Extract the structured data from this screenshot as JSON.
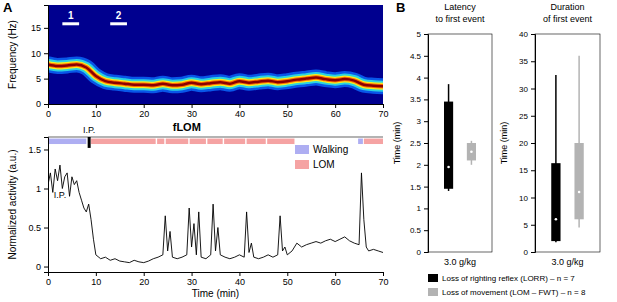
{
  "chart_data": [
    {
      "type": "line",
      "label": "A",
      "ylabel": "Frequency (Hz)",
      "color": "#8b0000",
      "x": [
        0,
        2,
        4,
        6,
        8,
        10,
        12,
        14,
        16,
        18,
        20,
        22,
        24,
        26,
        28,
        30,
        32,
        34,
        36,
        38,
        40,
        42,
        44,
        46,
        48,
        50,
        52,
        54,
        56,
        58,
        60,
        62,
        64,
        66,
        68,
        70
      ],
      "values": [
        7.8,
        7.5,
        7.6,
        7.8,
        7.2,
        5.5,
        4.5,
        4.2,
        4.0,
        3.8,
        3.8,
        3.7,
        4.0,
        3.7,
        3.8,
        4.2,
        3.9,
        4.1,
        4.3,
        4.0,
        4.5,
        4.2,
        4.4,
        4.6,
        4.3,
        4.5,
        4.8,
        5.0,
        5.2,
        4.9,
        4.7,
        4.9,
        4.6,
        3.8,
        3.6,
        3.5
      ],
      "xlim": [
        0,
        70
      ],
      "xticks": [
        0,
        10,
        20,
        30,
        40,
        50,
        60,
        70
      ],
      "ylim": [
        0,
        19.5
      ],
      "yticks": [
        0,
        5,
        10,
        15
      ],
      "annotations": [
        {
          "text": "1",
          "x0": 3,
          "x1": 6.5,
          "y": 15.8
        },
        {
          "text": "2",
          "x0": 13,
          "x1": 16.5,
          "y": 15.8
        }
      ],
      "footnote": {
        "text": "fLOM",
        "x": 29
      }
    },
    {
      "type": "line",
      "ylabel": "Normalized activity (a.u.)",
      "xlabel": "Time (min)",
      "color": "#000000",
      "x": [
        0,
        0.5,
        1,
        1.5,
        2,
        2.5,
        3,
        3.5,
        4,
        4.5,
        5,
        5.5,
        6,
        6.5,
        7,
        7.5,
        8,
        8.5,
        9,
        9.5,
        10,
        11,
        12,
        13,
        14,
        15,
        16,
        17,
        18,
        19,
        20,
        21,
        22,
        23,
        24,
        24.5,
        25,
        25.5,
        26,
        27,
        28,
        29,
        29.5,
        30,
        30.5,
        31,
        31.5,
        32,
        33,
        34,
        34.5,
        35,
        35.5,
        36,
        37,
        38,
        39,
        40,
        41,
        41.5,
        42,
        42.5,
        43,
        44,
        45,
        46,
        47,
        48,
        48.5,
        49,
        49.5,
        50,
        51,
        52,
        53,
        54,
        55,
        56,
        57,
        58,
        59,
        60,
        61,
        62,
        63,
        64,
        65,
        65.5,
        66,
        66.5,
        67,
        68,
        69,
        70
      ],
      "values": [
        1.05,
        1.2,
        0.95,
        1.25,
        1.1,
        1.3,
        1.0,
        1.15,
        1.2,
        0.9,
        1.15,
        1.05,
        1.1,
        0.95,
        0.85,
        0.75,
        0.7,
        0.8,
        0.6,
        0.35,
        0.15,
        0.1,
        0.12,
        0.08,
        0.1,
        0.07,
        0.06,
        0.05,
        0.08,
        0.06,
        0.05,
        0.07,
        0.1,
        0.12,
        0.15,
        0.65,
        0.2,
        0.45,
        0.12,
        0.1,
        0.12,
        0.15,
        0.75,
        0.25,
        0.55,
        0.15,
        0.7,
        0.12,
        0.1,
        0.15,
        0.8,
        0.2,
        0.5,
        0.15,
        0.12,
        0.1,
        0.12,
        0.15,
        0.12,
        0.7,
        0.18,
        0.3,
        0.12,
        0.1,
        0.12,
        0.15,
        0.12,
        0.15,
        0.65,
        0.2,
        0.25,
        0.15,
        0.2,
        0.3,
        0.25,
        0.28,
        0.3,
        0.32,
        0.3,
        0.33,
        0.35,
        0.32,
        0.35,
        0.38,
        0.33,
        0.3,
        0.28,
        1.2,
        0.6,
        0.25,
        0.2,
        0.22,
        0.2,
        0.18
      ],
      "xlim": [
        0,
        70
      ],
      "xticks": [
        0,
        10,
        20,
        30,
        40,
        50,
        60,
        70
      ],
      "ylim": [
        -0.07,
        1.66
      ],
      "yticks": [
        0,
        0.5,
        1,
        1.5
      ],
      "legend": "upper right",
      "states": [
        {
          "name": "Walking",
          "color": "#aeaef2"
        },
        {
          "name": "LOM",
          "color": "#f5a3a3"
        }
      ],
      "band": [
        1.57,
        1.64
      ],
      "segments": [
        {
          "state": "Walking",
          "start": 0,
          "end": 8
        },
        {
          "state": "LOM",
          "start": 9,
          "end": 22.5
        },
        {
          "state": "LOM",
          "start": 22.8,
          "end": 24.3
        },
        {
          "state": "LOM",
          "start": 24.6,
          "end": 29.3
        },
        {
          "state": "LOM",
          "start": 29.6,
          "end": 33
        },
        {
          "state": "LOM",
          "start": 33.3,
          "end": 36.5
        },
        {
          "state": "LOM",
          "start": 36.8,
          "end": 41.2
        },
        {
          "state": "LOM",
          "start": 41.5,
          "end": 45.5
        },
        {
          "state": "LOM",
          "start": 45.8,
          "end": 51.5
        },
        {
          "state": "Walking",
          "start": 64.8,
          "end": 65.8
        },
        {
          "state": "LOM",
          "start": 66,
          "end": 70
        }
      ],
      "injection": {
        "text": "I.P.",
        "x": 8.6,
        "y0": 1.52,
        "y1": 1.66
      },
      "annotations": [
        {
          "text": "I.P.",
          "x": 2.5,
          "y": 0.88
        }
      ]
    },
    {
      "type": "box",
      "label": "B",
      "categories": [
        "3.0 g/kg"
      ],
      "series": [
        {
          "name": "Loss of righting reflex (LORR) – n = 7",
          "color": "#000000"
        },
        {
          "name": "Loss of movement (LOM – FWT) – n = 8",
          "color": "#b3b3b3"
        }
      ],
      "panels": [
        {
          "title": [
            "Latency",
            "to first event"
          ],
          "ylabel": "Time (min)",
          "ylim": [
            0,
            5
          ],
          "yticks": [
            0,
            0.5,
            1,
            1.5,
            2,
            2.5,
            3,
            3.5,
            4,
            4.5,
            5
          ],
          "boxes": [
            {
              "min": 1.4,
              "q1": 1.45,
              "median": 1.95,
              "q3": 3.45,
              "max": 3.85
            },
            {
              "min": 2.0,
              "q1": 2.1,
              "median": 2.3,
              "q3": 2.5,
              "max": 2.55
            }
          ]
        },
        {
          "title": [
            "Duration",
            "of first event"
          ],
          "ylabel": "Time (min)",
          "ylim": [
            0,
            40
          ],
          "yticks": [
            0,
            5,
            10,
            15,
            20,
            25,
            30,
            35,
            40
          ],
          "boxes": [
            {
              "min": 1.8,
              "q1": 2.0,
              "median": 6.0,
              "q3": 16.3,
              "max": 32.5
            },
            {
              "min": 4.5,
              "q1": 6.0,
              "median": 11,
              "q3": 20,
              "max": 36
            }
          ]
        }
      ]
    }
  ]
}
